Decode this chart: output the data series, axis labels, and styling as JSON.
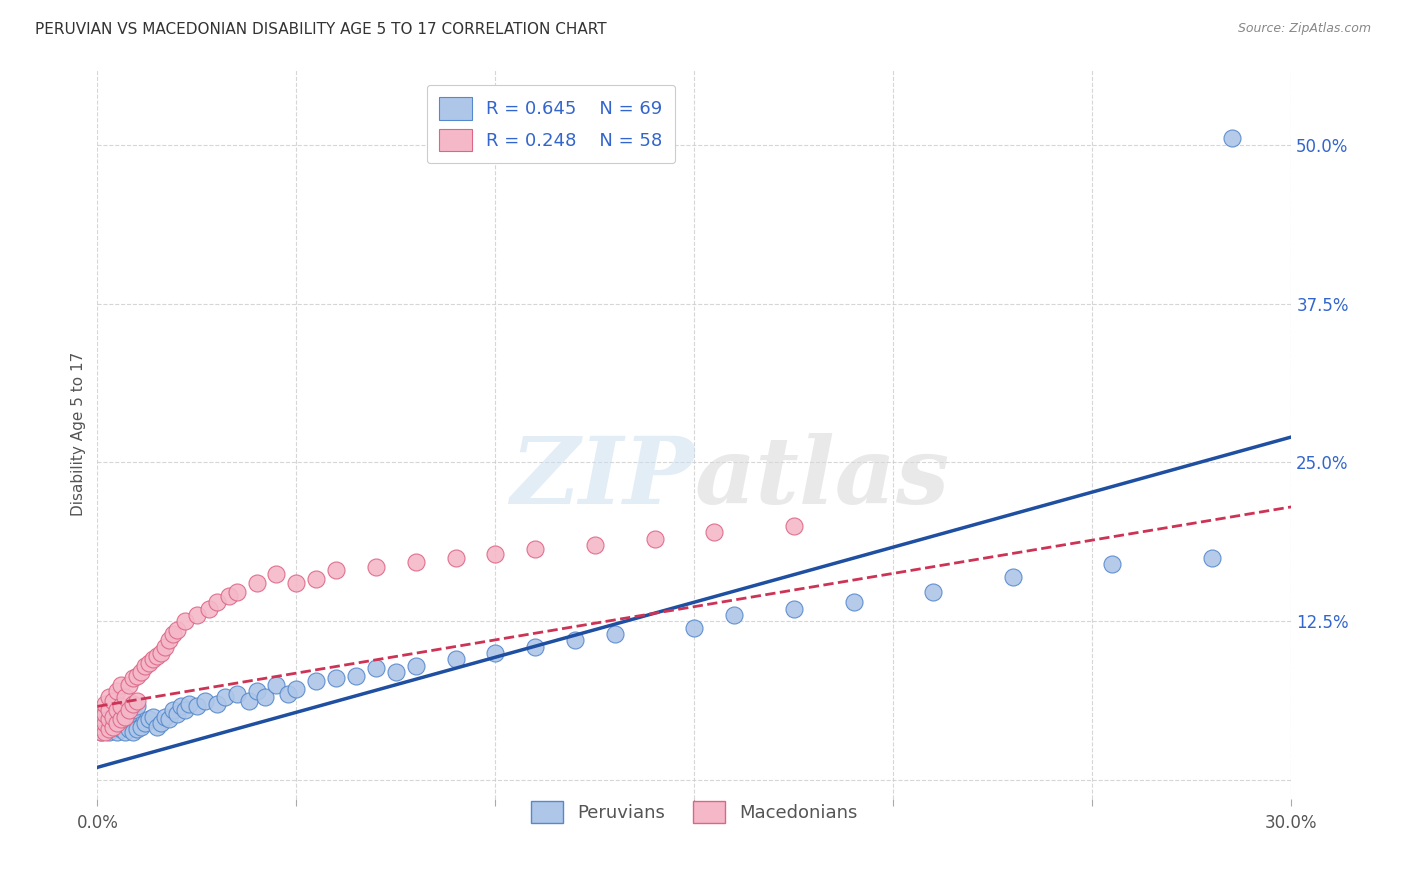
{
  "title": "PERUVIAN VS MACEDONIAN DISABILITY AGE 5 TO 17 CORRELATION CHART",
  "source": "Source: ZipAtlas.com",
  "ylabel": "Disability Age 5 to 17",
  "xlim": [
    0.0,
    0.3
  ],
  "ylim": [
    -0.015,
    0.56
  ],
  "xticks": [
    0.0,
    0.05,
    0.1,
    0.15,
    0.2,
    0.25,
    0.3
  ],
  "xticklabels": [
    "0.0%",
    "",
    "",
    "",
    "",
    "",
    "30.0%"
  ],
  "yticks": [
    0.0,
    0.125,
    0.25,
    0.375,
    0.5
  ],
  "yticklabels": [
    "",
    "12.5%",
    "25.0%",
    "37.5%",
    "50.0%"
  ],
  "grid_color": "#cccccc",
  "background_color": "#ffffff",
  "peruvian_color": "#aec6e8",
  "peruvian_edge": "#5588cc",
  "macedonian_color": "#f4b8c8",
  "macedonian_edge": "#dd6688",
  "peruvian_R": 0.645,
  "peruvian_N": 69,
  "macedonian_R": 0.248,
  "macedonian_N": 58,
  "peruvian_line_color": "#1f4fa0",
  "macedonian_line_color": "#cc3355",
  "ytick_color": "#3366cc",
  "xtick_color": "#555555",
  "peruvian_x": [
    0.001,
    0.001,
    0.002,
    0.002,
    0.002,
    0.003,
    0.003,
    0.003,
    0.004,
    0.004,
    0.004,
    0.005,
    0.005,
    0.005,
    0.006,
    0.006,
    0.006,
    0.007,
    0.007,
    0.008,
    0.008,
    0.009,
    0.009,
    0.01,
    0.01,
    0.011,
    0.012,
    0.013,
    0.014,
    0.015,
    0.016,
    0.017,
    0.018,
    0.019,
    0.02,
    0.021,
    0.022,
    0.023,
    0.025,
    0.027,
    0.03,
    0.032,
    0.035,
    0.038,
    0.04,
    0.042,
    0.045,
    0.048,
    0.05,
    0.055,
    0.06,
    0.065,
    0.07,
    0.075,
    0.08,
    0.09,
    0.1,
    0.11,
    0.12,
    0.13,
    0.15,
    0.16,
    0.175,
    0.19,
    0.21,
    0.23,
    0.255,
    0.28,
    0.285
  ],
  "peruvian_y": [
    0.038,
    0.042,
    0.04,
    0.045,
    0.05,
    0.038,
    0.042,
    0.048,
    0.04,
    0.044,
    0.052,
    0.038,
    0.043,
    0.05,
    0.04,
    0.045,
    0.055,
    0.038,
    0.048,
    0.04,
    0.052,
    0.038,
    0.055,
    0.04,
    0.058,
    0.042,
    0.045,
    0.048,
    0.05,
    0.042,
    0.045,
    0.05,
    0.048,
    0.055,
    0.052,
    0.058,
    0.055,
    0.06,
    0.058,
    0.062,
    0.06,
    0.065,
    0.068,
    0.062,
    0.07,
    0.065,
    0.075,
    0.068,
    0.072,
    0.078,
    0.08,
    0.082,
    0.088,
    0.085,
    0.09,
    0.095,
    0.1,
    0.105,
    0.11,
    0.115,
    0.12,
    0.13,
    0.135,
    0.14,
    0.148,
    0.16,
    0.17,
    0.175,
    0.505
  ],
  "macedonian_x": [
    0.001,
    0.001,
    0.001,
    0.002,
    0.002,
    0.002,
    0.002,
    0.003,
    0.003,
    0.003,
    0.003,
    0.004,
    0.004,
    0.004,
    0.005,
    0.005,
    0.005,
    0.006,
    0.006,
    0.006,
    0.007,
    0.007,
    0.008,
    0.008,
    0.009,
    0.009,
    0.01,
    0.01,
    0.011,
    0.012,
    0.013,
    0.014,
    0.015,
    0.016,
    0.017,
    0.018,
    0.019,
    0.02,
    0.022,
    0.025,
    0.028,
    0.03,
    0.033,
    0.035,
    0.04,
    0.045,
    0.05,
    0.055,
    0.06,
    0.07,
    0.08,
    0.09,
    0.1,
    0.11,
    0.125,
    0.14,
    0.155,
    0.175
  ],
  "macedonian_y": [
    0.038,
    0.042,
    0.05,
    0.038,
    0.045,
    0.052,
    0.06,
    0.04,
    0.048,
    0.055,
    0.065,
    0.042,
    0.05,
    0.062,
    0.045,
    0.055,
    0.07,
    0.048,
    0.058,
    0.075,
    0.05,
    0.065,
    0.055,
    0.075,
    0.06,
    0.08,
    0.062,
    0.082,
    0.085,
    0.09,
    0.092,
    0.095,
    0.098,
    0.1,
    0.105,
    0.11,
    0.115,
    0.118,
    0.125,
    0.13,
    0.135,
    0.14,
    0.145,
    0.148,
    0.155,
    0.162,
    0.155,
    0.158,
    0.165,
    0.168,
    0.172,
    0.175,
    0.178,
    0.182,
    0.185,
    0.19,
    0.195,
    0.2
  ],
  "peruvian_line_x": [
    0.0,
    0.3
  ],
  "peruvian_line_y": [
    0.01,
    0.27
  ],
  "macedonian_line_x": [
    0.0,
    0.3
  ],
  "macedonian_line_y": [
    0.058,
    0.215
  ]
}
